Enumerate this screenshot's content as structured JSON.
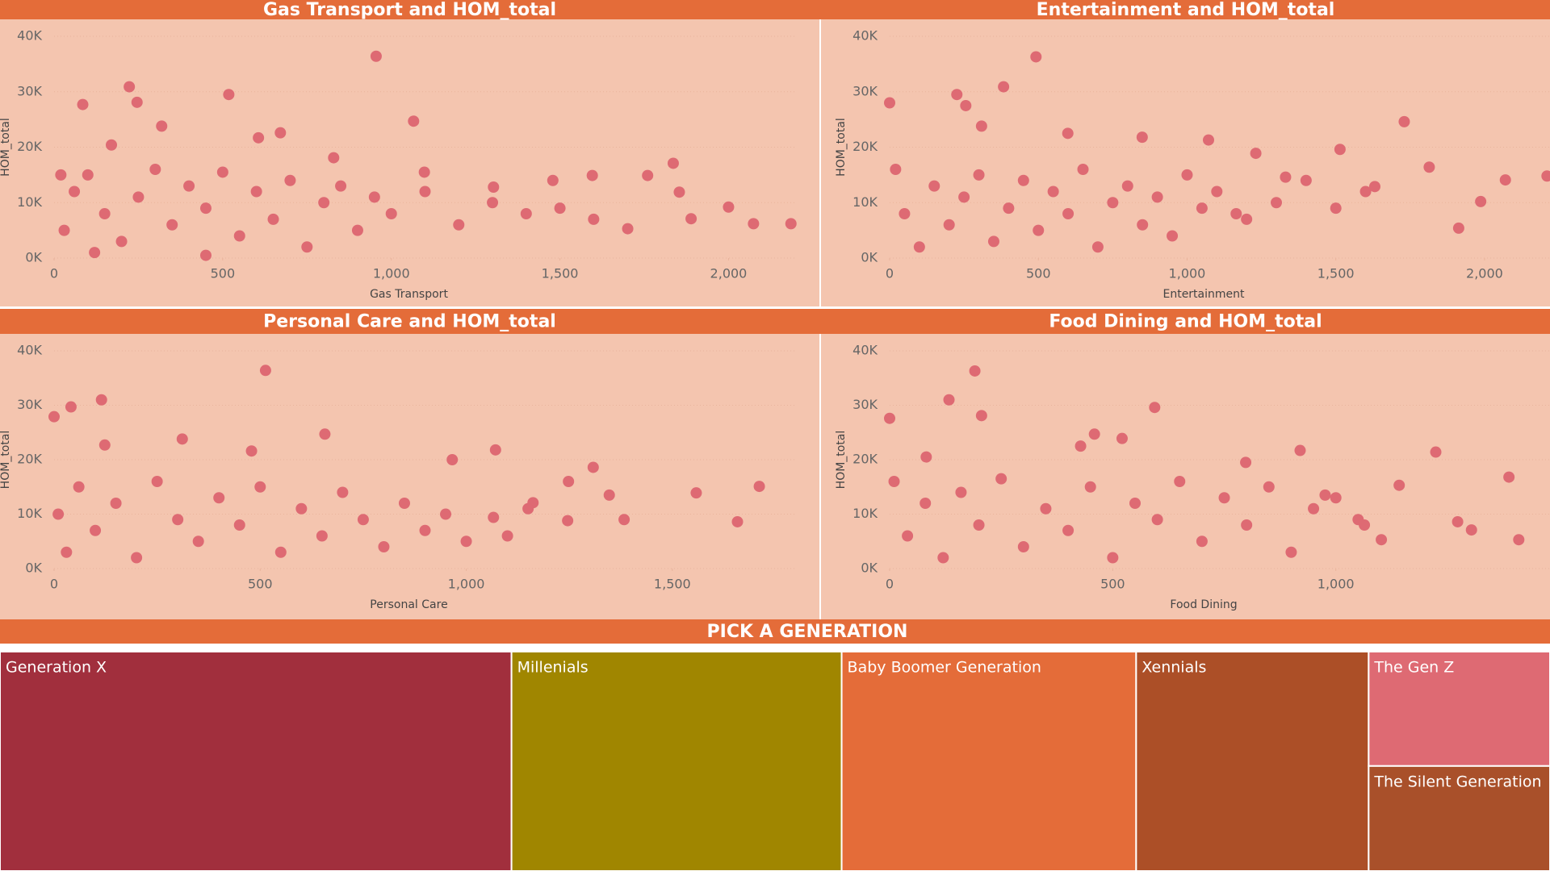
{
  "chart_data": [
    {
      "type": "scatter",
      "title": "Gas Transport and HOM_total",
      "x_label": "Gas Transport",
      "y_label": "HOM_total",
      "color": "#de6a73",
      "xlim": [
        0,
        2200
      ],
      "ylim": [
        0,
        40000
      ],
      "xticks": [
        0,
        500,
        {
          "value": 1000,
          "label": "1,000"
        },
        {
          "value": 1500,
          "label": "1,500"
        },
        {
          "value": 2000,
          "label": "2,000"
        }
      ],
      "yticks": [
        {
          "value": 0,
          "label": "0K"
        },
        {
          "value": 10000,
          "label": "10K"
        },
        {
          "value": 20000,
          "label": "20K"
        },
        {
          "value": 30000,
          "label": "30K"
        },
        {
          "value": 40000,
          "label": "40K"
        }
      ],
      "x": [
        85,
        223,
        246,
        518,
        955,
        1066,
        319,
        671,
        606,
        170,
        829,
        1760,
        1836,
        2000,
        2074,
        2185,
        1596,
        1701,
        1889,
        1854,
        1479,
        1098,
        1303,
        30,
        60,
        100,
        150,
        200,
        250,
        300,
        350,
        400,
        450,
        500,
        550,
        600,
        650,
        700,
        750,
        800,
        850,
        900,
        950,
        1000,
        1100,
        1200,
        1300,
        1400,
        1500,
        1600,
        20,
        120,
        450
      ],
      "values": [
        27700,
        30900,
        28100,
        29500,
        36400,
        24700,
        23800,
        22600,
        21700,
        20400,
        18100,
        14900,
        17100,
        9200,
        6200,
        6200,
        14900,
        5300,
        7100,
        11900,
        14000,
        15500,
        12800,
        5000,
        12000,
        15000,
        8000,
        3000,
        11000,
        16000,
        6000,
        13000,
        9000,
        15500,
        4000,
        12000,
        7000,
        14000,
        2000,
        10000,
        13000,
        5000,
        11000,
        8000,
        12000,
        6000,
        10000,
        8000,
        9000,
        7000,
        15000,
        1000,
        500
      ]
    },
    {
      "type": "scatter",
      "title": "Entertainment and HOM_total",
      "x_label": "Entertainment",
      "y_label": "HOM_total",
      "color": "#de6a73",
      "xlim": [
        0,
        2220
      ],
      "ylim": [
        0,
        40000
      ],
      "xticks": [
        0,
        500,
        {
          "value": 1000,
          "label": "1,000"
        },
        {
          "value": 1500,
          "label": "1,500"
        },
        {
          "value": 2000,
          "label": "2,000"
        }
      ],
      "yticks": [
        {
          "value": 0,
          "label": "0K"
        },
        {
          "value": 10000,
          "label": "10K"
        },
        {
          "value": 20000,
          "label": "20K"
        },
        {
          "value": 30000,
          "label": "30K"
        },
        {
          "value": 40000,
          "label": "40K"
        }
      ],
      "x": [
        492,
        383,
        226,
        256,
        0,
        309,
        599,
        1730,
        849,
        1072,
        1231,
        1514,
        1814,
        2070,
        2210,
        1913,
        1987,
        1331,
        1631,
        1165,
        20,
        50,
        100,
        150,
        200,
        250,
        300,
        350,
        400,
        450,
        500,
        550,
        600,
        650,
        700,
        750,
        800,
        850,
        900,
        950,
        1000,
        1050,
        1100,
        1200,
        1300,
        1400,
        1500,
        1600
      ],
      "values": [
        36300,
        30900,
        29500,
        27500,
        28000,
        23800,
        22500,
        24600,
        21800,
        21300,
        18900,
        19600,
        16400,
        14100,
        14800,
        5400,
        10200,
        14600,
        12900,
        8000,
        16000,
        8000,
        2000,
        13000,
        6000,
        11000,
        15000,
        3000,
        9000,
        14000,
        5000,
        12000,
        8000,
        16000,
        2000,
        10000,
        13000,
        6000,
        11000,
        4000,
        15000,
        9000,
        12000,
        7000,
        10000,
        14000,
        9000,
        12000
      ]
    },
    {
      "type": "scatter",
      "title": "Personal Care and HOM_total",
      "x_label": "Personal Care",
      "y_label": "HOM_total",
      "color": "#de6a73",
      "xlim": [
        0,
        1800
      ],
      "ylim": [
        0,
        40000
      ],
      "xticks": [
        0,
        500,
        {
          "value": 1000,
          "label": "1,000"
        },
        {
          "value": 1500,
          "label": "1,500"
        }
      ],
      "yticks": [
        {
          "value": 0,
          "label": "0K"
        },
        {
          "value": 10000,
          "label": "10K"
        },
        {
          "value": 20000,
          "label": "20K"
        },
        {
          "value": 30000,
          "label": "30K"
        },
        {
          "value": 40000,
          "label": "40K"
        }
      ],
      "x": [
        513,
        41,
        115,
        0,
        123,
        311,
        657,
        479,
        1071,
        966,
        1558,
        1711,
        1658,
        1383,
        1308,
        1248,
        1347,
        1246,
        1162,
        1066,
        10,
        30,
        60,
        100,
        150,
        200,
        250,
        300,
        350,
        400,
        450,
        500,
        550,
        600,
        650,
        700,
        750,
        800,
        850,
        900,
        950,
        1000,
        1100,
        1150
      ],
      "values": [
        36400,
        29700,
        31000,
        27900,
        22700,
        23800,
        24700,
        21600,
        21800,
        20000,
        13900,
        15100,
        8600,
        9000,
        18600,
        16000,
        13500,
        8800,
        12100,
        9400,
        10000,
        3000,
        15000,
        7000,
        12000,
        2000,
        16000,
        9000,
        5000,
        13000,
        8000,
        15000,
        3000,
        11000,
        6000,
        14000,
        9000,
        4000,
        12000,
        7000,
        10000,
        5000,
        6000,
        11000
      ]
    },
    {
      "type": "scatter",
      "title": "Food Dining and HOM_total",
      "x_label": "Food Dining",
      "y_label": "HOM_total",
      "color": "#de6a73",
      "xlim": [
        0,
        1480
      ],
      "ylim": [
        0,
        40000
      ],
      "xticks": [
        0,
        500,
        {
          "value": 1000,
          "label": "1,000"
        }
      ],
      "yticks": [
        {
          "value": 0,
          "label": "0K"
        },
        {
          "value": 10000,
          "label": "10K"
        },
        {
          "value": 20000,
          "label": "20K"
        },
        {
          "value": 30000,
          "label": "30K"
        },
        {
          "value": 40000,
          "label": "40K"
        }
      ],
      "x": [
        191,
        133,
        206,
        594,
        459,
        521,
        428,
        0,
        82,
        920,
        1224,
        1388,
        1410,
        1273,
        1304,
        1142,
        1064,
        798,
        976,
        1102,
        10,
        40,
        80,
        120,
        160,
        200,
        250,
        300,
        350,
        400,
        450,
        500,
        550,
        600,
        650,
        700,
        750,
        800,
        850,
        900,
        950,
        1000,
        1050
      ],
      "values": [
        36300,
        31000,
        28100,
        29600,
        24700,
        23900,
        22500,
        27600,
        20500,
        21700,
        21400,
        16800,
        5300,
        8600,
        7100,
        15300,
        8000,
        19500,
        13500,
        5300,
        16000,
        6000,
        12000,
        2000,
        14000,
        8000,
        16500,
        4000,
        11000,
        7000,
        15000,
        2000,
        12000,
        9000,
        16000,
        5000,
        13000,
        8000,
        15000,
        3000,
        11000,
        13000,
        9000
      ]
    },
    {
      "type": "treemap",
      "title": "PICK A GENERATION",
      "categories": [
        "Generation X",
        "Millenials",
        "Baby Boomer Generation",
        "Xennials",
        "The Gen Z",
        "The Silent Generation"
      ],
      "values": [
        33.0,
        21.3,
        19.0,
        15.0,
        6.1,
        5.6
      ],
      "colors": [
        "#a12f3d",
        "#a08600",
        "#e46c39",
        "#ac4f27",
        "#de6a73",
        "#a9502a"
      ]
    }
  ]
}
